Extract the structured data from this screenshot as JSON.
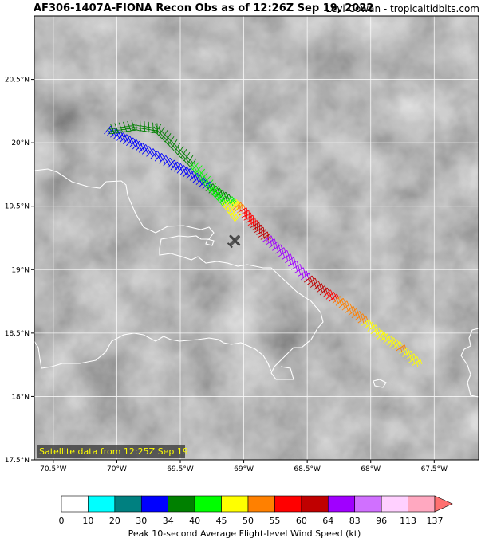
{
  "header": {
    "title": "AF306-1407A-FIONA Recon Obs as of 12:26Z Sep 19, 2022",
    "credit": "Levi Cowan - tropicaltidbits.com"
  },
  "map": {
    "lon_range": [
      -70.65,
      -67.15
    ],
    "lat_range": [
      17.5,
      21.0
    ],
    "lon_ticks": [
      {
        "v": -70.5,
        "label": "70.5°W"
      },
      {
        "v": -70.0,
        "label": "70°W"
      },
      {
        "v": -69.5,
        "label": "69.5°W"
      },
      {
        "v": -69.0,
        "label": "69°W"
      },
      {
        "v": -68.5,
        "label": "68.5°W"
      },
      {
        "v": -68.0,
        "label": "68°W"
      },
      {
        "v": -67.5,
        "label": "67.5°W"
      }
    ],
    "lat_ticks": [
      {
        "v": 20.5,
        "label": "20.5°N"
      },
      {
        "v": 20.0,
        "label": "20°N"
      },
      {
        "v": 19.5,
        "label": "19.5°N"
      },
      {
        "v": 19.0,
        "label": "19°N"
      },
      {
        "v": 18.5,
        "label": "18.5°N"
      },
      {
        "v": 18.0,
        "label": "18°N"
      },
      {
        "v": 17.5,
        "label": "17.5°N"
      }
    ],
    "satellite_note": "Satellite data from 12:25Z Sep 19",
    "flight_track": [
      {
        "lon": -70.1,
        "lat": 20.07,
        "kt": 30
      },
      {
        "lon": -69.95,
        "lat": 19.99,
        "kt": 30
      },
      {
        "lon": -69.8,
        "lat": 19.91,
        "kt": 30
      },
      {
        "lon": -69.6,
        "lat": 19.8,
        "kt": 30
      },
      {
        "lon": -69.45,
        "lat": 19.72,
        "kt": 30
      },
      {
        "lon": -69.3,
        "lat": 19.62,
        "kt": 34
      },
      {
        "lon": -69.15,
        "lat": 19.52,
        "kt": 40
      },
      {
        "lon": -69.05,
        "lat": 19.45,
        "kt": 55
      },
      {
        "lon": -68.95,
        "lat": 19.33,
        "kt": 60
      },
      {
        "lon": -68.85,
        "lat": 19.22,
        "kt": 64
      },
      {
        "lon": -68.7,
        "lat": 19.08,
        "kt": 64
      },
      {
        "lon": -68.55,
        "lat": 18.92,
        "kt": 64
      },
      {
        "lon": -68.4,
        "lat": 18.8,
        "kt": 60
      },
      {
        "lon": -68.25,
        "lat": 18.7,
        "kt": 50
      },
      {
        "lon": -68.1,
        "lat": 18.58,
        "kt": 50
      },
      {
        "lon": -67.95,
        "lat": 18.45,
        "kt": 45
      },
      {
        "lon": -67.8,
        "lat": 18.36,
        "kt": 50
      },
      {
        "lon": -67.65,
        "lat": 18.22,
        "kt": 45
      }
    ],
    "return_track": [
      {
        "lon": -70.05,
        "lat": 20.15,
        "kt": 34
      },
      {
        "lon": -69.85,
        "lat": 20.18,
        "kt": 34
      },
      {
        "lon": -69.65,
        "lat": 20.15,
        "kt": 34
      },
      {
        "lon": -69.5,
        "lat": 20.0,
        "kt": 34
      },
      {
        "lon": -69.35,
        "lat": 19.85,
        "kt": 40
      },
      {
        "lon": -69.22,
        "lat": 19.68,
        "kt": 40
      },
      {
        "lon": -69.1,
        "lat": 19.55,
        "kt": 45
      },
      {
        "lon": -69.0,
        "lat": 19.42,
        "kt": 50
      }
    ]
  },
  "colorbar": {
    "label": "Peak 10-second Average Flight-level Wind Speed (kt)",
    "ticks": [
      "0",
      "10",
      "20",
      "30",
      "34",
      "40",
      "45",
      "50",
      "55",
      "60",
      "64",
      "83",
      "96",
      "113",
      "137"
    ],
    "colors": [
      "#ffffff",
      "#00ffff",
      "#008080",
      "#0000ff",
      "#008000",
      "#00ff00",
      "#ffff00",
      "#ff8000",
      "#ff0000",
      "#c00000",
      "#a000ff",
      "#d070ff",
      "#ffd0ff",
      "#ffa8c0"
    ],
    "extend_color": "#ff7070"
  }
}
